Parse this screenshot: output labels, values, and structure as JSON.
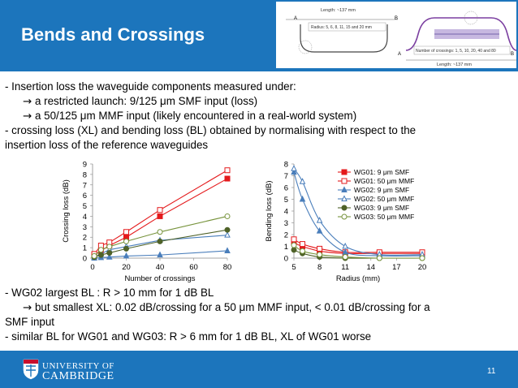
{
  "slide": {
    "title": "Bends and Crossings",
    "page_number": "11",
    "colors": {
      "title_bar": "#1c75bc",
      "footer": "#1c75bc"
    }
  },
  "diagram": {
    "left": {
      "label_a": "A",
      "label_b": "B",
      "length": "Length: ~137 mm",
      "radius": "Radius: 5, 6, 8, 11, 15 and 20 mm"
    },
    "right": {
      "label_a": "A",
      "label_b": "B",
      "crossings": "Number of crossings: 1, 5, 10, 20, 40 and 80",
      "length": "Length: ~137 mm"
    }
  },
  "bullets_top": [
    {
      "text": "- Insertion loss the waveguide components measured under:"
    },
    {
      "arrow": "→",
      "text": " a restricted launch: 9/125 μm SMF input (loss)"
    },
    {
      "arrow": "→",
      "text": " a 50/125 μm MMF input (likely encountered in a real-world system)"
    },
    {
      "text": "- crossing loss (XL) and bending loss (BL) obtained by normalising with respect to the"
    },
    {
      "text": "insertion loss of the reference waveguides"
    }
  ],
  "bullets_bottom": [
    {
      "text": "- WG02 largest BL : R > 10 mm for 1 dB BL"
    },
    {
      "arrow": "→",
      "text": " but smallest XL: 0.02 dB/crossing for a 50 μm MMF input, < 0.01 dB/crossing for a"
    },
    {
      "text": "SMF input"
    },
    {
      "text": "- similar BL for WG01 and WG03: R > 6 mm for 1 dB BL, XL of WG01 worse"
    }
  ],
  "footer": {
    "university_line1": "UNIVERSITY OF",
    "university_line2": "CAMBRIDGE"
  },
  "chart_data": [
    {
      "type": "line",
      "xlabel": "Number of crossings",
      "ylabel": "Crossing loss (dB)",
      "xlim": [
        0,
        80
      ],
      "ylim": [
        0,
        9
      ],
      "xticks": [
        0,
        20,
        40,
        60,
        80
      ],
      "yticks": [
        0,
        1,
        2,
        3,
        4,
        5,
        6,
        7,
        8,
        9
      ],
      "grid": false,
      "x": [
        1,
        5,
        10,
        20,
        40,
        80
      ],
      "series": [
        {
          "name": "WG01: 9 μm SMF",
          "color": "#e41a1c",
          "marker": "square-filled",
          "values": [
            0.3,
            0.7,
            1.2,
            2.0,
            4.0,
            7.6
          ]
        },
        {
          "name": "WG01: 50 μm MMF",
          "color": "#e41a1c",
          "marker": "square-open",
          "values": [
            0.4,
            1.2,
            1.5,
            2.5,
            4.6,
            8.4
          ]
        },
        {
          "name": "WG02: 9 μm SMF",
          "color": "#4a7ebb",
          "marker": "triangle-filled",
          "values": [
            0.0,
            0.05,
            0.1,
            0.2,
            0.3,
            0.7
          ]
        },
        {
          "name": "WG02: 50 μm MMF",
          "color": "#4a7ebb",
          "marker": "triangle-open",
          "values": [
            0.1,
            0.4,
            0.8,
            1.1,
            1.7,
            2.2
          ]
        },
        {
          "name": "WG03: 9 μm SMF",
          "color": "#4f6228",
          "marker": "circle-filled",
          "values": [
            0.1,
            0.3,
            0.5,
            0.9,
            1.6,
            2.7
          ]
        },
        {
          "name": "WG03: 50 μm MMF",
          "color": "#77933c",
          "marker": "circle-open",
          "values": [
            0.2,
            0.8,
            1.1,
            1.6,
            2.5,
            4.0
          ]
        }
      ]
    },
    {
      "type": "line",
      "xlabel": "Radius (mm)",
      "ylabel": "Bending loss (dB)",
      "xlim": [
        5,
        20
      ],
      "ylim": [
        0,
        8
      ],
      "xticks": [
        5,
        8,
        11,
        14,
        17,
        20
      ],
      "yticks": [
        0,
        1,
        2,
        3,
        4,
        5,
        6,
        7,
        8
      ],
      "grid": false,
      "legend": "top-right",
      "x": [
        5,
        6,
        8,
        11,
        15,
        20
      ],
      "series": [
        {
          "name": "WG01:  9 μm SMF",
          "color": "#e41a1c",
          "marker": "square-filled",
          "values": [
            1.3,
            1.0,
            0.6,
            0.4,
            0.4,
            0.4
          ]
        },
        {
          "name": "WG01: 50 μm MMF",
          "color": "#e41a1c",
          "marker": "square-open",
          "values": [
            1.6,
            1.2,
            0.8,
            0.5,
            0.5,
            0.5
          ]
        },
        {
          "name": "WG02:  9 μm SMF",
          "color": "#4a7ebb",
          "marker": "triangle-filled",
          "values": [
            7.3,
            5.0,
            2.3,
            0.5,
            0.2,
            0.2
          ]
        },
        {
          "name": "WG02: 50 μm MMF",
          "color": "#4a7ebb",
          "marker": "triangle-open",
          "values": [
            7.6,
            6.5,
            3.2,
            1.0,
            0.3,
            0.3
          ]
        },
        {
          "name": "WG03:  9 μm SMF",
          "color": "#4f6228",
          "marker": "circle-filled",
          "values": [
            0.7,
            0.4,
            0.1,
            0.0,
            0.0,
            0.0
          ]
        },
        {
          "name": "WG03: 50 μm MMF",
          "color": "#77933c",
          "marker": "circle-open",
          "values": [
            1.1,
            0.6,
            0.3,
            0.1,
            0.0,
            0.0
          ]
        }
      ]
    }
  ]
}
